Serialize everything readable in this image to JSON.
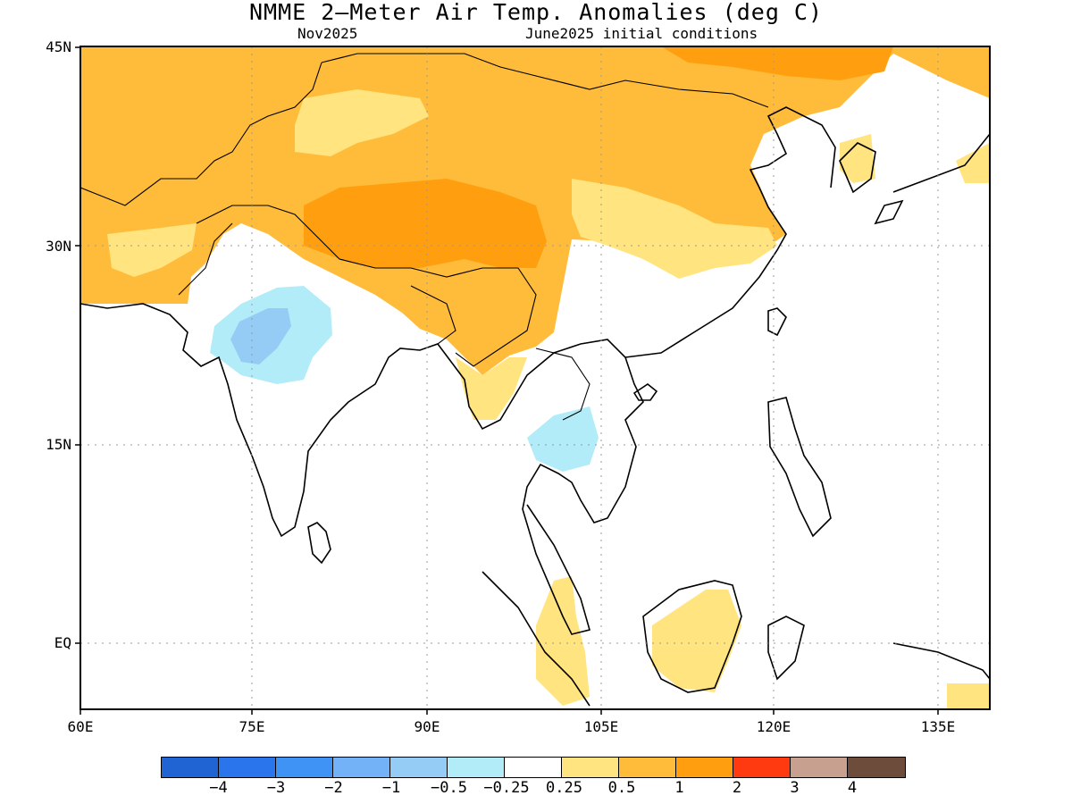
{
  "title": "NMME 2–Meter Air Temp. Anomalies (deg C)",
  "subtitle_left": "Nov2025",
  "subtitle_right": "June2025 initial conditions",
  "y_axis": [
    {
      "value": 45,
      "label": "45N"
    },
    {
      "value": 30,
      "label": "30N"
    },
    {
      "value": 15,
      "label": "15N"
    },
    {
      "value": 0,
      "label": "EQ"
    }
  ],
  "x_axis": [
    {
      "value": 60,
      "label": "60E"
    },
    {
      "value": 75,
      "label": "75E"
    },
    {
      "value": 90,
      "label": "90E"
    },
    {
      "value": 105,
      "label": "105E"
    },
    {
      "value": 120,
      "label": "120E"
    },
    {
      "value": 135,
      "label": "135E"
    }
  ],
  "colorbar": {
    "colors": [
      "#1f64d2",
      "#2a75ec",
      "#3f93f5",
      "#73b2f6",
      "#94ccf6",
      "#b2ecf8",
      "#ffffff",
      "#ffe47f",
      "#ffbb3a",
      "#ff9f0f",
      "#ff3a10",
      "#c8a090",
      "#6e4c3c"
    ],
    "labels": [
      "−4",
      "−3",
      "−2",
      "−1",
      "−0.5",
      "−0.25",
      "0.25",
      "0.5",
      "1",
      "2",
      "3",
      "4"
    ]
  },
  "chart_data": {
    "type": "heatmap",
    "title": "NMME 2–Meter Air Temp. Anomalies (deg C)",
    "valid_month": "Nov2025",
    "initial_conditions": "June2025 initial conditions",
    "region": {
      "lon_range": [
        60,
        140
      ],
      "lat_range": [
        -5.5,
        45
      ]
    },
    "units": "deg C",
    "contour_levels": [
      -4,
      -3,
      -2,
      -1,
      -0.5,
      -0.25,
      0.25,
      0.5,
      1,
      2,
      3,
      4
    ],
    "anomaly_regions": [
      {
        "area": "Central Asia / Afghanistan / Pakistan",
        "category": "0.5 to 1"
      },
      {
        "area": "Mongolia / Northern China",
        "category": "0.5 to 1"
      },
      {
        "area": "Tibetan Plateau",
        "category": "1 to 2"
      },
      {
        "area": "Southwest China / Myanmar",
        "category": "0.5 to 1"
      },
      {
        "area": "Central India",
        "category": "-0.5 to -0.25"
      },
      {
        "area": "Central India core",
        "category": "-1 to -0.5"
      },
      {
        "area": "Thailand",
        "category": "-0.5 to -0.25"
      },
      {
        "area": "Borneo",
        "category": "0.25 to 0.5"
      },
      {
        "area": "Sumatra / Malay Peninsula",
        "category": "0.25 to 0.5"
      }
    ]
  }
}
